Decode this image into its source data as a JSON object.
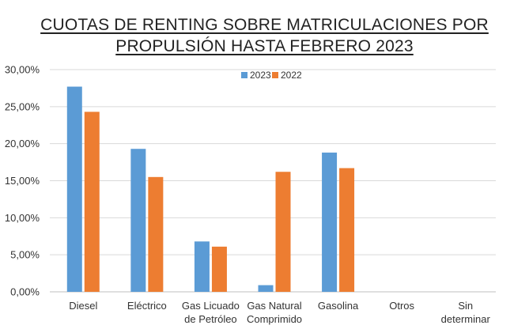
{
  "chart_data": {
    "type": "bar",
    "title_lines": [
      "CUOTAS DE RENTING SOBRE MATRICULACIONES POR",
      "PROPULSIÓN HASTA FEBRERO 2023"
    ],
    "categories": [
      [
        "Diesel"
      ],
      [
        "Eléctrico"
      ],
      [
        "Gas Licuado",
        "de Petróleo"
      ],
      [
        "Gas Natural",
        "Comprimido"
      ],
      [
        "Gasolina"
      ],
      [
        "Otros"
      ],
      [
        "Sin",
        "determinar"
      ]
    ],
    "series": [
      {
        "name": "2023",
        "color": "#5b9bd5",
        "values": [
          27.7,
          19.3,
          6.8,
          0.9,
          18.8,
          0,
          0
        ]
      },
      {
        "name": "2022",
        "color": "#ed7d31",
        "values": [
          24.3,
          15.5,
          6.1,
          16.2,
          16.7,
          0,
          0
        ]
      }
    ],
    "y_ticks": [
      "0,00%",
      "5,00%",
      "10,00%",
      "15,00%",
      "20,00%",
      "25,00%",
      "30,00%"
    ],
    "ylim": [
      0,
      30
    ],
    "grid": true,
    "legend_position": "top-center",
    "gridline_color": "#d9d9d9"
  }
}
